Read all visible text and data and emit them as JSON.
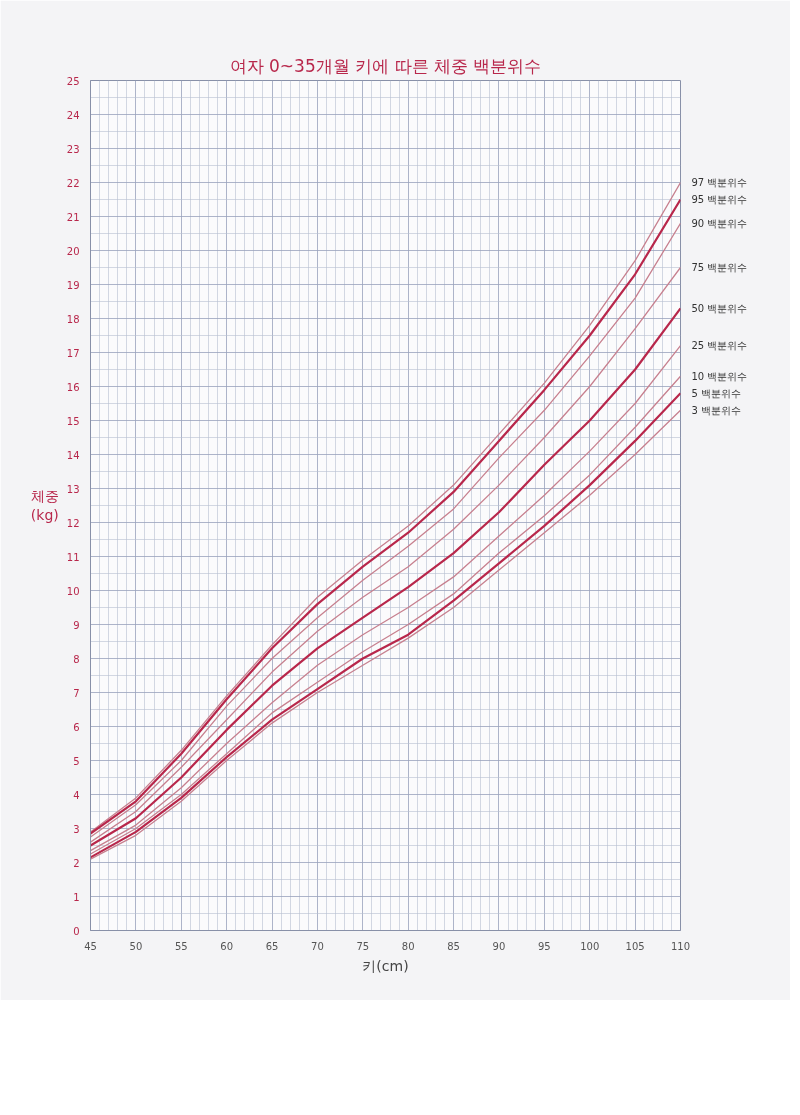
{
  "chart_data": {
    "type": "line",
    "title": "여자 0~35개월 키에 따른 체중 백분위수",
    "xlabel": "키(cm)",
    "ylabel": "체중\n(kg)",
    "x": [
      45,
      50,
      55,
      60,
      65,
      70,
      75,
      80,
      85,
      90,
      95,
      100,
      105,
      110
    ],
    "series": [
      {
        "name": "97 백분위수",
        "color": "#c7808f",
        "values": [
          2.9,
          3.9,
          5.3,
          6.9,
          8.4,
          9.8,
          10.9,
          11.9,
          13.1,
          14.6,
          16.1,
          17.8,
          19.7,
          22.0
        ]
      },
      {
        "name": "95 백분위수",
        "color": "#b8274b",
        "values": [
          2.85,
          3.8,
          5.2,
          6.8,
          8.3,
          9.6,
          10.7,
          11.7,
          12.9,
          14.4,
          15.9,
          17.5,
          19.3,
          21.5
        ]
      },
      {
        "name": "90 백분위수",
        "color": "#c7808f",
        "values": [
          2.75,
          3.7,
          5.0,
          6.6,
          8.0,
          9.2,
          10.3,
          11.3,
          12.4,
          13.9,
          15.3,
          16.9,
          18.6,
          20.8
        ]
      },
      {
        "name": "75 백분위수",
        "color": "#c7808f",
        "values": [
          2.6,
          3.5,
          4.8,
          6.2,
          7.6,
          8.8,
          9.8,
          10.7,
          11.8,
          13.1,
          14.5,
          16.0,
          17.7,
          19.5
        ]
      },
      {
        "name": "50 백분위수",
        "color": "#b8274b",
        "values": [
          2.5,
          3.3,
          4.5,
          5.9,
          7.2,
          8.3,
          9.2,
          10.1,
          11.1,
          12.3,
          13.7,
          15.0,
          16.5,
          18.3
        ]
      },
      {
        "name": "25 백분위수",
        "color": "#c7808f",
        "values": [
          2.35,
          3.1,
          4.2,
          5.5,
          6.7,
          7.8,
          8.7,
          9.5,
          10.4,
          11.6,
          12.8,
          14.1,
          15.5,
          17.2
        ]
      },
      {
        "name": "10 백분위수",
        "color": "#c7808f",
        "values": [
          2.25,
          3.0,
          4.0,
          5.2,
          6.4,
          7.3,
          8.2,
          9.0,
          9.9,
          11.1,
          12.2,
          13.4,
          14.8,
          16.3
        ]
      },
      {
        "name": "5 백분위수",
        "color": "#b8274b",
        "values": [
          2.15,
          2.9,
          3.9,
          5.1,
          6.2,
          7.1,
          8.0,
          8.7,
          9.7,
          10.8,
          11.9,
          13.1,
          14.4,
          15.8
        ]
      },
      {
        "name": "3 백분위수",
        "color": "#c7808f",
        "values": [
          2.1,
          2.8,
          3.8,
          5.0,
          6.1,
          7.0,
          7.8,
          8.6,
          9.5,
          10.6,
          11.7,
          12.8,
          14.0,
          15.3
        ]
      }
    ],
    "xlim": [
      45,
      110
    ],
    "ylim": [
      0,
      25
    ],
    "xticks": [
      45,
      50,
      55,
      60,
      65,
      70,
      75,
      80,
      85,
      90,
      95,
      100,
      105,
      110
    ],
    "yticks": [
      0,
      1,
      2,
      3,
      4,
      5,
      6,
      7,
      8,
      9,
      10,
      11,
      12,
      13,
      14,
      15,
      16,
      17,
      18,
      19,
      20,
      21,
      22,
      23,
      24,
      25
    ],
    "grid": true,
    "legend": false,
    "marker": "none",
    "line_style": "solid"
  }
}
